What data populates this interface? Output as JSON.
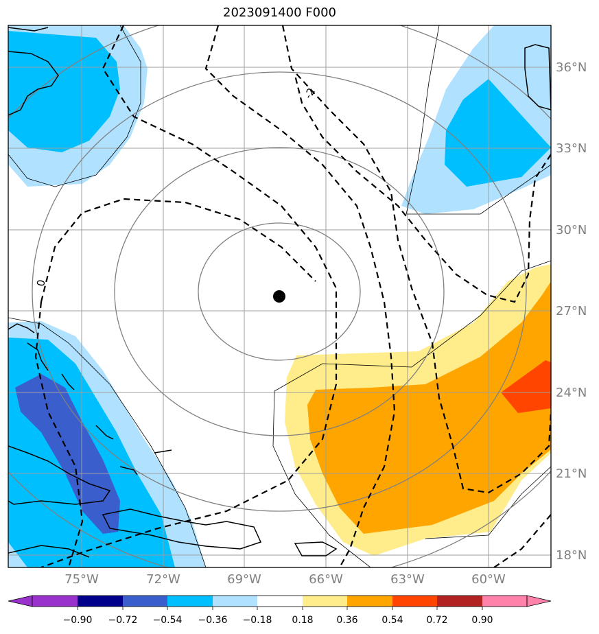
{
  "title": "2023091400 F000",
  "latitudes": [
    "36°N",
    "33°N",
    "30°N",
    "27°N",
    "24°N",
    "21°N",
    "18°N"
  ],
  "longitudes": [
    "75°W",
    "72°W",
    "69°W",
    "66°W",
    "63°W",
    "60°W"
  ],
  "contour_labels": [
    "-2",
    "0"
  ],
  "colorbar": {
    "ticks": [
      "−0.90",
      "−0.72",
      "−0.54",
      "−0.36",
      "−0.18",
      "0.18",
      "0.36",
      "0.54",
      "0.72",
      "0.90"
    ],
    "colors": [
      "#9932cc",
      "#00008b",
      "#3a5fcd",
      "#00bfff",
      "#b0e2ff",
      "#ffffff",
      "#ffec8b",
      "#ffa500",
      "#ff4500",
      "#b22222",
      "#ff82ab"
    ]
  },
  "fill_colors": {
    "light_blue": "#b0e2ff",
    "blue": "#00bfff",
    "dark_blue": "#3a5fcd",
    "light_yellow": "#ffec8b",
    "orange": "#ffa500",
    "red_orange": "#ff4500"
  },
  "storm_center": {
    "lat": 27.5,
    "lon": -67.8
  }
}
